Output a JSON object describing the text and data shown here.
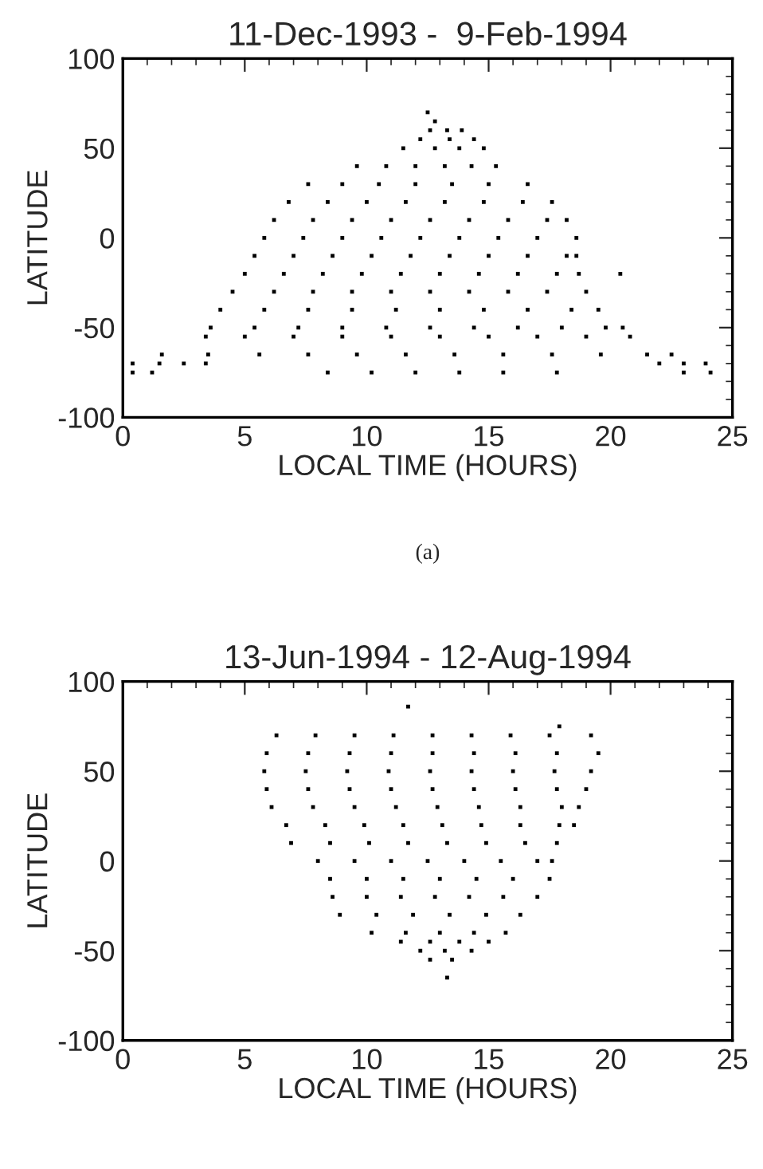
{
  "chart_data": [
    {
      "type": "scatter",
      "title": "11-Dec-1993 -  9-Feb-1994",
      "xlabel": "LOCAL TIME (HOURS)",
      "ylabel": "LATITUDE",
      "xlim": [
        0,
        25
      ],
      "xticks": [
        0,
        5,
        10,
        15,
        20,
        25
      ],
      "ylim": [
        -100,
        100
      ],
      "yticks": [
        -100,
        -50,
        0,
        50,
        100
      ],
      "grid": false,
      "marker": "square",
      "annotations": [
        "(a)"
      ],
      "series": [
        {
          "color": "#000000",
          "x": [
            12.5,
            12.8,
            12.6,
            13.3,
            13.9,
            12.2,
            13.4,
            14.4,
            11.5,
            12.8,
            13.8,
            14.8,
            9.6,
            10.8,
            12.0,
            13.2,
            14.3,
            15.3,
            7.6,
            9.0,
            10.5,
            12.0,
            13.5,
            15.0,
            16.6,
            6.8,
            8.4,
            10.0,
            11.6,
            13.2,
            14.8,
            16.4,
            17.6,
            6.2,
            7.8,
            9.4,
            11.0,
            12.6,
            14.2,
            15.8,
            17.4,
            18.2,
            5.8,
            7.4,
            9.0,
            10.6,
            12.2,
            13.8,
            15.4,
            17.0,
            18.6,
            5.4,
            7.0,
            8.6,
            10.2,
            11.8,
            13.4,
            15.0,
            16.6,
            18.2,
            18.6,
            5.0,
            6.6,
            8.2,
            9.8,
            11.4,
            13.0,
            14.6,
            16.2,
            17.8,
            18.7,
            20.4,
            4.5,
            6.2,
            7.8,
            9.4,
            11.0,
            12.6,
            14.2,
            15.8,
            17.4,
            19.0,
            4.0,
            5.8,
            7.6,
            9.4,
            11.2,
            13.0,
            14.8,
            16.6,
            18.4,
            19.5,
            3.6,
            5.4,
            7.2,
            9.0,
            10.8,
            12.6,
            14.4,
            16.2,
            18.0,
            19.8,
            20.5,
            3.4,
            5.0,
            7.0,
            9.0,
            11.0,
            13.0,
            15.0,
            17.0,
            19.0,
            20.8,
            1.6,
            3.5,
            5.6,
            7.6,
            9.6,
            11.6,
            13.6,
            15.6,
            17.6,
            19.6,
            21.5,
            22.5,
            0.4,
            1.5,
            2.5,
            3.4,
            22.0,
            23.0,
            23.9,
            0.4,
            1.2,
            8.4,
            10.2,
            12.0,
            13.8,
            15.6,
            17.8,
            23.0,
            24.1
          ],
          "values": [
            70,
            65,
            60,
            60,
            60,
            55,
            55,
            55,
            50,
            50,
            50,
            50,
            40,
            40,
            40,
            40,
            40,
            40,
            30,
            30,
            30,
            30,
            30,
            30,
            30,
            20,
            20,
            20,
            20,
            20,
            20,
            20,
            20,
            10,
            10,
            10,
            10,
            10,
            10,
            10,
            10,
            10,
            0,
            0,
            0,
            0,
            0,
            0,
            0,
            0,
            0,
            -10,
            -10,
            -10,
            -10,
            -10,
            -10,
            -10,
            -10,
            -10,
            -10,
            -20,
            -20,
            -20,
            -20,
            -20,
            -20,
            -20,
            -20,
            -20,
            -20,
            -20,
            -30,
            -30,
            -30,
            -30,
            -30,
            -30,
            -30,
            -30,
            -30,
            -30,
            -40,
            -40,
            -40,
            -40,
            -40,
            -40,
            -40,
            -40,
            -40,
            -40,
            -50,
            -50,
            -50,
            -50,
            -50,
            -50,
            -50,
            -50,
            -50,
            -50,
            -50,
            -55,
            -55,
            -55,
            -55,
            -55,
            -55,
            -55,
            -55,
            -55,
            -55,
            -65,
            -65,
            -65,
            -65,
            -65,
            -65,
            -65,
            -65,
            -65,
            -65,
            -65,
            -65,
            -70,
            -70,
            -70,
            -70,
            -70,
            -70,
            -70,
            -75,
            -75,
            -75,
            -75,
            -75,
            -75,
            -75,
            -75,
            -75,
            -75
          ]
        }
      ]
    },
    {
      "type": "scatter",
      "title": "13-Jun-1994 - 12-Aug-1994",
      "xlabel": "LOCAL TIME (HOURS)",
      "ylabel": "LATITUDE",
      "xlim": [
        0,
        25
      ],
      "xticks": [
        0,
        5,
        10,
        15,
        20,
        25
      ],
      "ylim": [
        -100,
        100
      ],
      "yticks": [
        -100,
        -50,
        0,
        50,
        100
      ],
      "grid": false,
      "marker": "square",
      "series": [
        {
          "color": "#000000",
          "x": [
            11.7,
            17.9,
            6.3,
            7.9,
            9.5,
            11.1,
            12.7,
            14.3,
            15.9,
            17.5,
            19.2,
            5.9,
            7.6,
            9.3,
            11.0,
            12.7,
            14.4,
            16.1,
            17.8,
            19.5,
            5.8,
            7.5,
            9.2,
            10.9,
            12.6,
            14.3,
            16.0,
            17.7,
            19.2,
            5.9,
            7.6,
            9.3,
            11.0,
            12.7,
            14.4,
            16.1,
            17.8,
            19.0,
            6.1,
            7.8,
            9.5,
            11.2,
            12.9,
            14.6,
            16.3,
            18.0,
            18.7,
            6.7,
            8.3,
            9.9,
            11.5,
            13.1,
            14.7,
            16.3,
            17.9,
            18.5,
            6.9,
            8.5,
            10.1,
            11.7,
            13.3,
            14.9,
            16.5,
            17.8,
            8.0,
            9.5,
            11.0,
            12.5,
            14.0,
            15.5,
            17.0,
            17.6,
            8.5,
            10.0,
            11.5,
            13.0,
            14.5,
            16.0,
            17.5,
            8.6,
            10.0,
            11.4,
            12.8,
            14.2,
            15.6,
            17.0,
            8.9,
            10.4,
            11.9,
            13.4,
            14.9,
            16.3,
            10.2,
            11.6,
            13.0,
            14.4,
            15.7,
            11.4,
            12.6,
            13.8,
            15.0,
            12.2,
            13.2,
            14.3,
            12.6,
            13.5,
            13.3
          ],
          "values": [
            86,
            75,
            70,
            70,
            70,
            70,
            70,
            70,
            70,
            70,
            70,
            60,
            60,
            60,
            60,
            60,
            60,
            60,
            60,
            60,
            50,
            50,
            50,
            50,
            50,
            50,
            50,
            50,
            50,
            40,
            40,
            40,
            40,
            40,
            40,
            40,
            40,
            40,
            30,
            30,
            30,
            30,
            30,
            30,
            30,
            30,
            30,
            20,
            20,
            20,
            20,
            20,
            20,
            20,
            20,
            20,
            10,
            10,
            10,
            10,
            10,
            10,
            10,
            10,
            0,
            0,
            0,
            0,
            0,
            0,
            0,
            0,
            -10,
            -10,
            -10,
            -10,
            -10,
            -10,
            -10,
            -20,
            -20,
            -20,
            -20,
            -20,
            -20,
            -20,
            -30,
            -30,
            -30,
            -30,
            -30,
            -30,
            -40,
            -40,
            -40,
            -40,
            -40,
            -45,
            -45,
            -45,
            -45,
            -50,
            -50,
            -50,
            -55,
            -55,
            -65
          ]
        }
      ]
    }
  ]
}
